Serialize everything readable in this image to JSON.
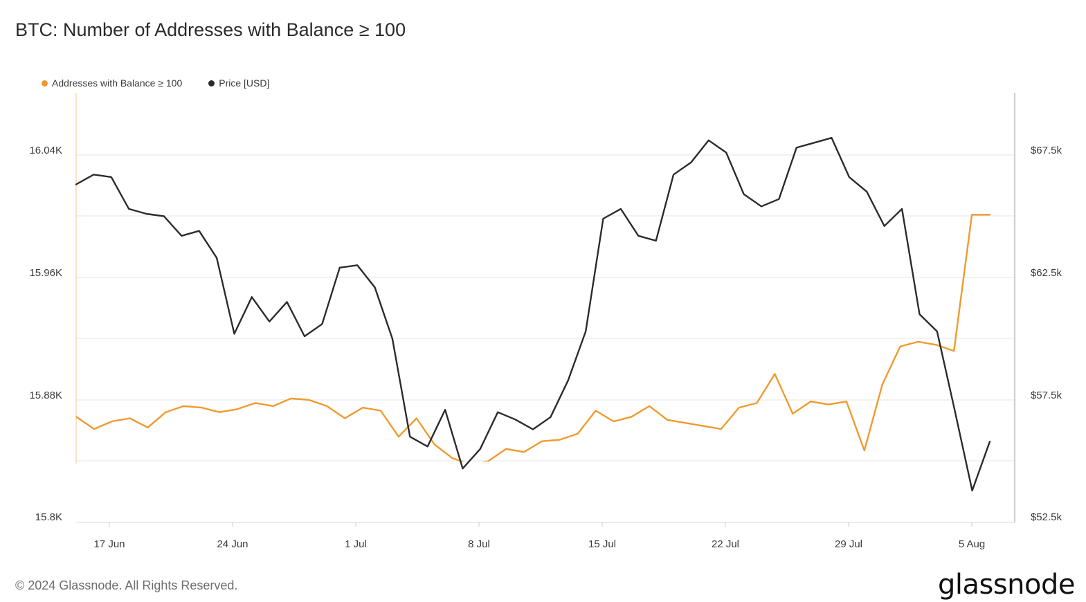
{
  "chart_data": {
    "type": "line",
    "title": "BTC: Number of Addresses with Balance ≥ 100",
    "x_ticks": [
      "17 Jun",
      "24 Jun",
      "1 Jul",
      "8 Jul",
      "15 Jul",
      "22 Jul",
      "29 Jul",
      "5 Aug"
    ],
    "y_left": {
      "ticks": [
        "16.04K",
        "15.96K",
        "15.88K",
        "15.8K"
      ],
      "range": [
        15.8,
        16.08
      ]
    },
    "y_right": {
      "ticks": [
        "$67.5k",
        "$62.5k",
        "$57.5k",
        "$52.5k"
      ],
      "range": [
        52.5,
        69.9
      ]
    },
    "grid": true,
    "legend_position": "top-left",
    "series": [
      {
        "name": "Addresses with Balance ≥ 100",
        "axis": "left",
        "color": "#f09a2d",
        "values": [
          15.869,
          15.861,
          15.866,
          15.868,
          15.862,
          15.872,
          15.876,
          15.875,
          15.872,
          15.874,
          15.878,
          15.876,
          15.881,
          15.88,
          15.876,
          15.868,
          15.875,
          15.873,
          15.856,
          15.868,
          15.851,
          15.842,
          15.838,
          15.84,
          15.848,
          15.846,
          15.853,
          15.854,
          15.858,
          15.873,
          15.866,
          15.869,
          15.876,
          15.867,
          15.865,
          15.863,
          15.861,
          15.875,
          15.878,
          15.897,
          15.871,
          15.879,
          15.877,
          15.879,
          15.847,
          15.89,
          15.915,
          15.918,
          15.916,
          15.912,
          16.001,
          16.001
        ]
      },
      {
        "name": "Price [USD]",
        "axis": "right",
        "color": "#2b2b2b",
        "values": [
          66.3,
          66.7,
          66.6,
          65.3,
          65.1,
          65.0,
          64.2,
          64.4,
          63.3,
          60.2,
          61.7,
          60.7,
          61.5,
          60.1,
          60.6,
          62.9,
          63.0,
          62.1,
          60.0,
          56.0,
          55.6,
          57.1,
          54.7,
          55.5,
          57.0,
          56.7,
          56.3,
          56.8,
          58.3,
          60.3,
          64.9,
          65.3,
          64.2,
          64.0,
          66.7,
          67.2,
          68.1,
          67.6,
          65.9,
          65.4,
          65.7,
          67.8,
          68.0,
          68.2,
          66.6,
          66.0,
          64.6,
          65.3,
          61.0,
          60.3,
          57.1,
          53.8,
          55.8
        ]
      }
    ]
  },
  "footer": {
    "copyright": "© 2024 Glassnode. All Rights Reserved.",
    "brand": "glassnode"
  }
}
